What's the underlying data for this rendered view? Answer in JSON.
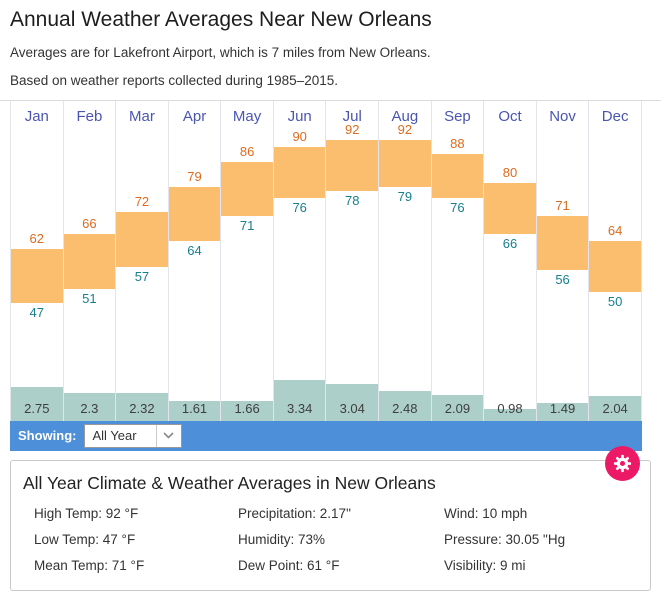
{
  "page": {
    "title": "Annual Weather Averages Near New Orleans",
    "subtitle1": "Averages are for Lakefront Airport, which is 7 miles from New Orleans.",
    "subtitle2": "Based on weather reports collected during 1985–2015."
  },
  "chart_data": {
    "type": "bar",
    "title": "Annual Weather Averages Near New Orleans",
    "categories": [
      "Jan",
      "Feb",
      "Mar",
      "Apr",
      "May",
      "Jun",
      "Jul",
      "Aug",
      "Sep",
      "Oct",
      "Nov",
      "Dec"
    ],
    "series": [
      {
        "id": "high",
        "name": "Average High Temp (°F)",
        "values": [
          62,
          66,
          72,
          79,
          86,
          90,
          92,
          92,
          88,
          80,
          71,
          64
        ]
      },
      {
        "id": "low",
        "name": "Average Low Temp (°F)",
        "values": [
          47,
          51,
          57,
          64,
          71,
          76,
          78,
          79,
          76,
          66,
          56,
          50
        ]
      },
      {
        "id": "precip",
        "name": "Precipitation (inches)",
        "values": [
          2.75,
          2.3,
          2.32,
          1.61,
          1.66,
          3.34,
          3.04,
          2.48,
          2.09,
          0.98,
          1.49,
          2.04
        ]
      }
    ],
    "temp_axis_range": [
      47,
      92
    ],
    "precip_axis_range": [
      0,
      3.34
    ],
    "grid": false,
    "legend": "none"
  },
  "showing_bar": {
    "label": "Showing:",
    "selected": "All Year"
  },
  "summary": {
    "title": "All Year Climate & Weather Averages in New Orleans",
    "stats": [
      {
        "label": "High Temp",
        "value": "92 °F"
      },
      {
        "label": "Precipitation",
        "value": "2.17\""
      },
      {
        "label": "Wind",
        "value": "10 mph"
      },
      {
        "label": "Low Temp",
        "value": "47 °F"
      },
      {
        "label": "Humidity",
        "value": "73%"
      },
      {
        "label": "Pressure",
        "value": "30.05 \"Hg"
      },
      {
        "label": "Mean Temp",
        "value": "71 °F"
      },
      {
        "label": "Dew Point",
        "value": "61 °F"
      },
      {
        "label": "Visibility",
        "value": "9 mi"
      }
    ]
  },
  "icons": {
    "settings": "gear-icon",
    "dropdown": "chevron-down-icon"
  },
  "colors": {
    "blue_bar": "#4D8FD9",
    "settings_pink": "#EC1A66",
    "temp_bar": "#FBBD6E",
    "precip_bar": "#ACCFC9",
    "high_text": "#DD6B1D",
    "low_text": "#157F8D",
    "month_text": "#4A55B2"
  }
}
